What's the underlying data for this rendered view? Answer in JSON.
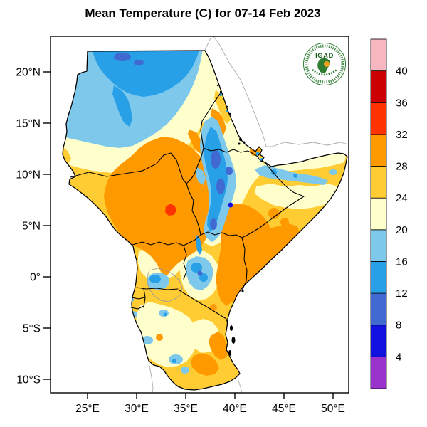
{
  "title": "Mean Temperature (C) for 07-14 Feb 2023",
  "logo": {
    "text": "IGAD"
  },
  "chart_data": {
    "type": "heatmap",
    "title": "Mean Temperature (C) for 07-14 Feb 2023",
    "unit": "C",
    "period": "07-14 Feb 2023",
    "legend_position": "right",
    "grid": false,
    "x_axis": {
      "ticks": [
        {
          "value": 25,
          "label": "25°E"
        },
        {
          "value": 30,
          "label": "30°E"
        },
        {
          "value": 35,
          "label": "35°E"
        },
        {
          "value": 40,
          "label": "40°E"
        },
        {
          "value": 45,
          "label": "45°E"
        },
        {
          "value": 50,
          "label": "50°E"
        }
      ],
      "range_lon": [
        21.2,
        51.6
      ]
    },
    "y_axis": {
      "ticks": [
        {
          "value": 20,
          "label": "20°N"
        },
        {
          "value": 15,
          "label": "15°N"
        },
        {
          "value": 10,
          "label": "10°N"
        },
        {
          "value": 5,
          "label": "5°N"
        },
        {
          "value": 0,
          "label": "0°"
        },
        {
          "value": -5,
          "label": "5°S"
        },
        {
          "value": -10,
          "label": "10°S"
        }
      ],
      "range_lat": [
        -11.4,
        23.5
      ]
    },
    "colorbar": {
      "levels": [
        4,
        8,
        12,
        16,
        20,
        24,
        28,
        32,
        36,
        40
      ],
      "palette_order": [
        "lt4",
        "4-8",
        "8-12",
        "12-16",
        "16-20",
        "20-24",
        "24-28",
        "28-32",
        "32-36",
        "36-40",
        "gt40"
      ]
    },
    "palette": {
      "lt4": "#9933cc",
      "4-8": "#1111e0",
      "8-12": "#4169d2",
      "12-16": "#27a0e8",
      "16-20": "#7ec8ec",
      "20-24": "#ffffcc",
      "24-28": "#ffcc33",
      "28-32": "#ff9900",
      "32-36": "#ff3300",
      "36-40": "#cc0000",
      "gt40": "#f8b7c0"
    },
    "colors": {
      "sea": "#ffffff",
      "country_border": "#000000",
      "non_region_coast": "#aaaaaa",
      "lake_outline": "#999999",
      "logo_green": "#2e7d32",
      "logo_orange": "#f0a020"
    }
  }
}
